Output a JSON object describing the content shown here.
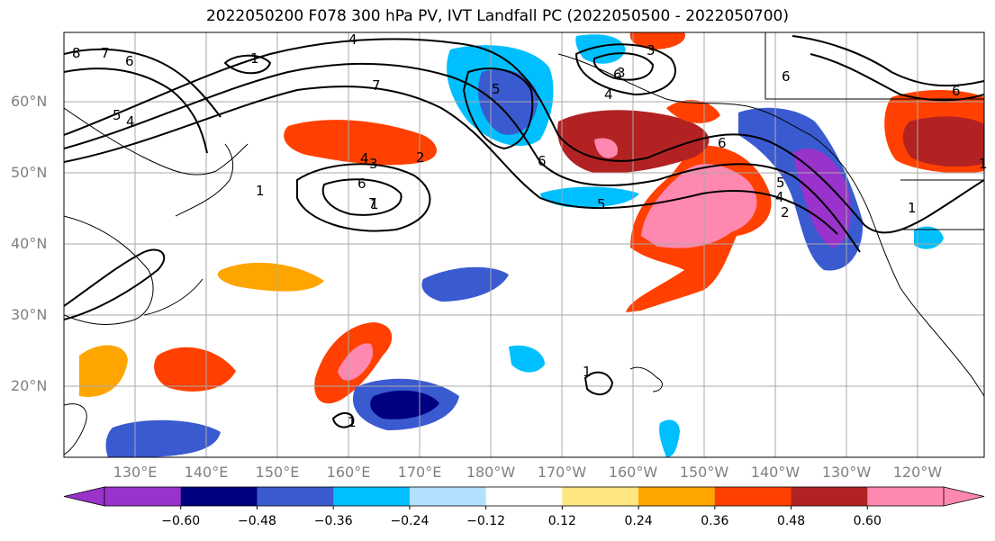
{
  "title": "2022050200 F078 300 hPa PV, IVT Landfall PC (2022050500 - 2022050700)",
  "map": {
    "lat_labels": [
      "60°N",
      "50°N",
      "40°N",
      "30°N",
      "20°N"
    ],
    "lon_labels": [
      "130°E",
      "140°E",
      "150°E",
      "160°E",
      "170°E",
      "180°W",
      "170°W",
      "160°W",
      "150°W",
      "140°W",
      "130°W",
      "120°W"
    ],
    "contour_labels": [
      "1",
      "1",
      "1",
      "1",
      "1",
      "1",
      "1",
      "2",
      "2",
      "3",
      "3",
      "3",
      "4",
      "4",
      "4",
      "4",
      "4",
      "5",
      "5",
      "5",
      "5",
      "6",
      "6",
      "6",
      "6",
      "6",
      "6",
      "6",
      "7",
      "7",
      "7",
      "8"
    ]
  },
  "colorbar": {
    "colors": [
      "#9933cc",
      "#000080",
      "#3a5ad0",
      "#00bfff",
      "#b3e0ff",
      "#ffffff",
      "#ffe680",
      "#ffa500",
      "#ff4000",
      "#b22222",
      "#ff88b0"
    ],
    "tick_labels": [
      "−0.60",
      "−0.48",
      "−0.36",
      "−0.24",
      "−0.12",
      "0.12",
      "0.24",
      "0.36",
      "0.48",
      "0.60"
    ]
  }
}
